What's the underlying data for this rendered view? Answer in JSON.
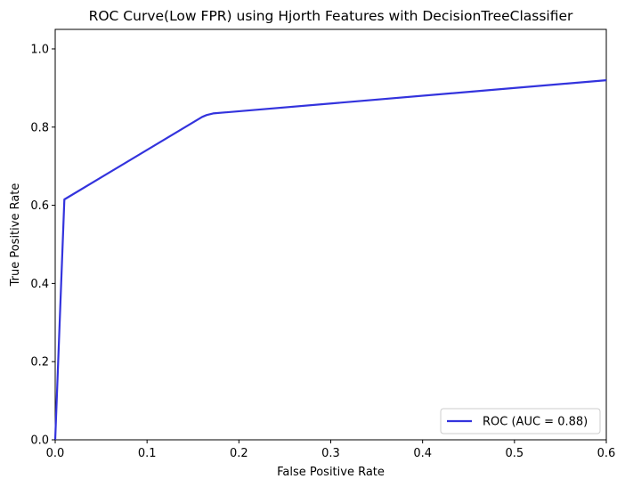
{
  "chart_data": {
    "type": "line",
    "title": "ROC Curve(Low FPR) using Hjorth Features with DecisionTreeClassifier",
    "xlabel": "False Positive Rate",
    "ylabel": "True Positive Rate",
    "xlim": [
      0,
      0.6
    ],
    "ylim": [
      0,
      1.05
    ],
    "xticks": [
      0,
      0.1,
      0.2,
      0.3,
      0.4,
      0.5,
      0.6
    ],
    "xtick_labels": [
      "0.0",
      "0.1",
      "0.2",
      "0.3",
      "0.4",
      "0.5",
      "0.6"
    ],
    "yticks": [
      0,
      0.2,
      0.4,
      0.6,
      0.8,
      1.0
    ],
    "ytick_labels": [
      "0.0",
      "0.2",
      "0.4",
      "0.6",
      "0.8",
      "1.0"
    ],
    "grid": false,
    "legend_position": "lower-right",
    "series": [
      {
        "name": "ROC (AUC = 0.88)",
        "color": "#3333dd",
        "x": [
          0.0,
          0.01,
          0.16,
          0.165,
          0.172,
          0.6
        ],
        "y": [
          0.0,
          0.615,
          0.826,
          0.831,
          0.835,
          0.92
        ]
      }
    ]
  }
}
